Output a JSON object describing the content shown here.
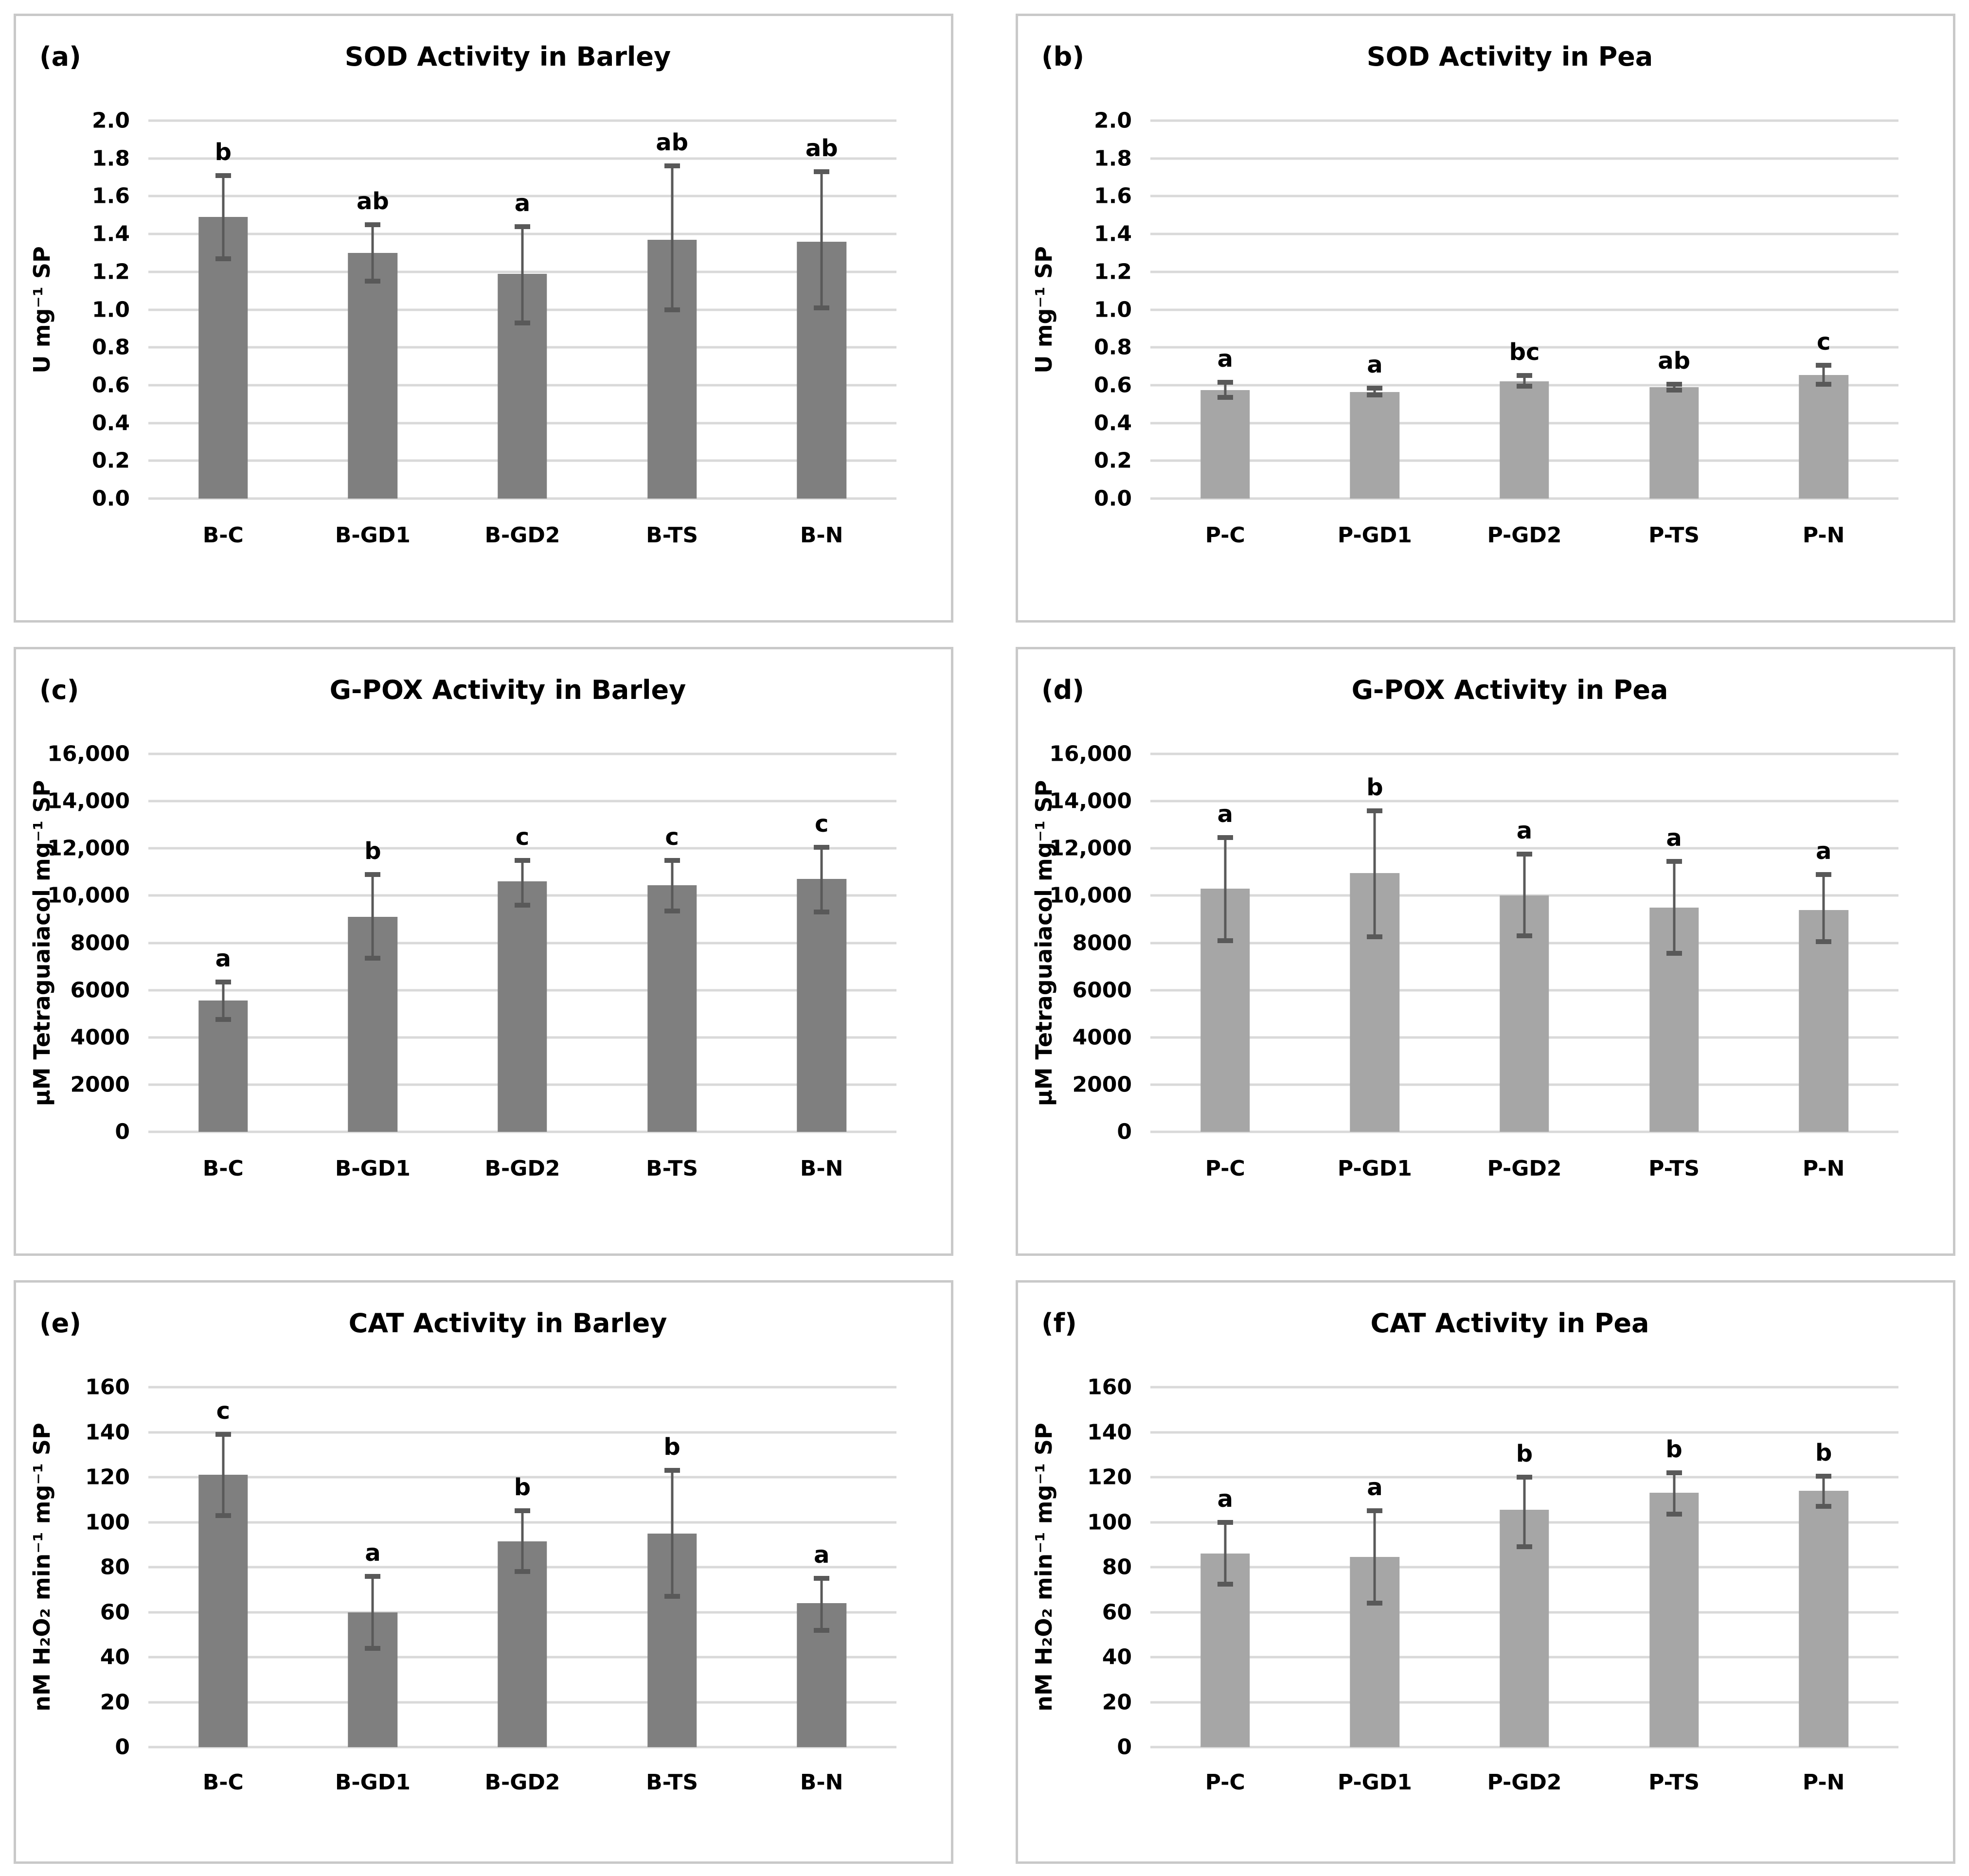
{
  "colors": {
    "barley_bar": "#7f7f7f",
    "pea_bar": "#a6a6a6",
    "error_bar": "#595959",
    "gridline": "#d9d9d9",
    "panel_border": "#c9c9c9",
    "text": "#000000",
    "background": "#ffffff"
  },
  "chart_data": [
    {
      "panel_label": "(a)",
      "type": "bar",
      "title": "SOD Activity in Barley",
      "ylabel": "U mg⁻¹ SP",
      "xlabel": "",
      "categories": [
        "B-C",
        "B-GD1",
        "B-GD2",
        "B-TS",
        "B-N"
      ],
      "values": [
        1.49,
        1.3,
        1.19,
        1.37,
        1.36
      ],
      "err_low": [
        1.27,
        1.15,
        0.93,
        1.0,
        1.01
      ],
      "err_high": [
        1.71,
        1.45,
        1.44,
        1.76,
        1.73
      ],
      "sig_letters": [
        "b",
        "ab",
        "a",
        "ab",
        "ab"
      ],
      "ylim": [
        0,
        2.0
      ],
      "ytick_values": [
        2.0,
        1.8,
        1.6,
        1.4,
        1.2,
        1.0,
        0.8,
        0.6,
        0.4,
        0.2,
        0.0
      ],
      "ytick_labels": [
        "2.0",
        "1.8",
        "1.6",
        "1.4",
        "1.2",
        "1.0",
        "0.8",
        "0.6",
        "0.4",
        "0.2",
        "0.0"
      ],
      "bar_color": "#7f7f7f",
      "grid": true,
      "legend": "none"
    },
    {
      "panel_label": "(b)",
      "type": "bar",
      "title": "SOD Activity in Pea",
      "ylabel": "U mg⁻¹ SP",
      "xlabel": "",
      "categories": [
        "P-C",
        "P-GD1",
        "P-GD2",
        "P-TS",
        "P-N"
      ],
      "values": [
        0.575,
        0.565,
        0.62,
        0.59,
        0.655
      ],
      "err_low": [
        0.535,
        0.548,
        0.595,
        0.575,
        0.605
      ],
      "err_high": [
        0.615,
        0.585,
        0.65,
        0.605,
        0.705
      ],
      "sig_letters": [
        "a",
        "a",
        "bc",
        "ab",
        "c"
      ],
      "ylim": [
        0,
        2.0
      ],
      "ytick_values": [
        2.0,
        1.8,
        1.6,
        1.4,
        1.2,
        1.0,
        0.8,
        0.6,
        0.4,
        0.2,
        0.0
      ],
      "ytick_labels": [
        "2.0",
        "1.8",
        "1.6",
        "1.4",
        "1.2",
        "1.0",
        "0.8",
        "0.6",
        "0.4",
        "0.2",
        "0.0"
      ],
      "bar_color": "#a6a6a6",
      "grid": true,
      "legend": "none"
    },
    {
      "panel_label": "(c)",
      "type": "bar",
      "title": "G-POX Activity in Barley",
      "ylabel": "µM Tetraguaiacol mg⁻¹ SP",
      "xlabel": "",
      "categories": [
        "B-C",
        "B-GD1",
        "B-GD2",
        "B-TS",
        "B-N"
      ],
      "values": [
        5550,
        9100,
        10600,
        10450,
        10700
      ],
      "err_low": [
        4750,
        7350,
        9600,
        9350,
        9300
      ],
      "err_high": [
        6350,
        10900,
        11500,
        11500,
        12050
      ],
      "sig_letters": [
        "a",
        "b",
        "c",
        "c",
        "c"
      ],
      "ylim": [
        0,
        16000
      ],
      "ytick_values": [
        16000,
        14000,
        12000,
        10000,
        8000,
        6000,
        4000,
        2000,
        0
      ],
      "ytick_labels": [
        "16,000",
        "14,000",
        "12,000",
        "10,000",
        "8000",
        "6000",
        "4000",
        "2000",
        "0"
      ],
      "bar_color": "#7f7f7f",
      "grid": true,
      "legend": "none"
    },
    {
      "panel_label": "(d)",
      "type": "bar",
      "title": "G-POX Activity in Pea",
      "ylabel": "µM Tetraguaiacol mg⁻¹ SP",
      "xlabel": "",
      "categories": [
        "P-C",
        "P-GD1",
        "P-GD2",
        "P-TS",
        "P-N"
      ],
      "values": [
        10300,
        10950,
        10000,
        9500,
        9400
      ],
      "err_low": [
        8100,
        8250,
        8300,
        7550,
        8050
      ],
      "err_high": [
        12450,
        13600,
        11750,
        11450,
        10900
      ],
      "sig_letters": [
        "a",
        "b",
        "a",
        "a",
        "a"
      ],
      "ylim": [
        0,
        16000
      ],
      "ytick_values": [
        16000,
        14000,
        12000,
        10000,
        8000,
        6000,
        4000,
        2000,
        0
      ],
      "ytick_labels": [
        "16,000",
        "14,000",
        "12,000",
        "10,000",
        "8000",
        "6000",
        "4000",
        "2000",
        "0"
      ],
      "bar_color": "#a6a6a6",
      "grid": true,
      "legend": "none"
    },
    {
      "panel_label": "(e)",
      "type": "bar",
      "title": "CAT Activity in Barley",
      "ylabel": "nM H₂O₂ min⁻¹ mg⁻¹ SP",
      "xlabel": "",
      "categories": [
        "B-C",
        "B-GD1",
        "B-GD2",
        "B-TS",
        "B-N"
      ],
      "values": [
        121,
        60,
        91.5,
        95,
        64
      ],
      "err_low": [
        103,
        44,
        78,
        67,
        52
      ],
      "err_high": [
        139,
        76,
        105,
        123,
        75
      ],
      "sig_letters": [
        "c",
        "a",
        "b",
        "b",
        "a"
      ],
      "ylim": [
        0,
        160
      ],
      "ytick_values": [
        160,
        140,
        120,
        100,
        80,
        60,
        40,
        20,
        0
      ],
      "ytick_labels": [
        "160",
        "140",
        "120",
        "100",
        "80",
        "60",
        "40",
        "20",
        "0"
      ],
      "bar_color": "#7f7f7f",
      "grid": true,
      "legend": "none"
    },
    {
      "panel_label": "(f)",
      "type": "bar",
      "title": "CAT Activity in Pea",
      "ylabel": "nM H₂O₂ min⁻¹ mg⁻¹ SP",
      "xlabel": "",
      "categories": [
        "P-C",
        "P-GD1",
        "P-GD2",
        "P-TS",
        "P-N"
      ],
      "values": [
        86,
        84.5,
        105.5,
        113,
        114
      ],
      "err_low": [
        72.5,
        64,
        89,
        103.5,
        107
      ],
      "err_high": [
        100,
        105,
        120,
        122,
        120.5
      ],
      "sig_letters": [
        "a",
        "a",
        "b",
        "b",
        "b"
      ],
      "ylim": [
        0,
        160
      ],
      "ytick_values": [
        160,
        140,
        120,
        100,
        80,
        60,
        40,
        20,
        0
      ],
      "ytick_labels": [
        "160",
        "140",
        "120",
        "100",
        "80",
        "60",
        "40",
        "20",
        "0"
      ],
      "bar_color": "#a6a6a6",
      "grid": true,
      "legend": "none"
    }
  ]
}
